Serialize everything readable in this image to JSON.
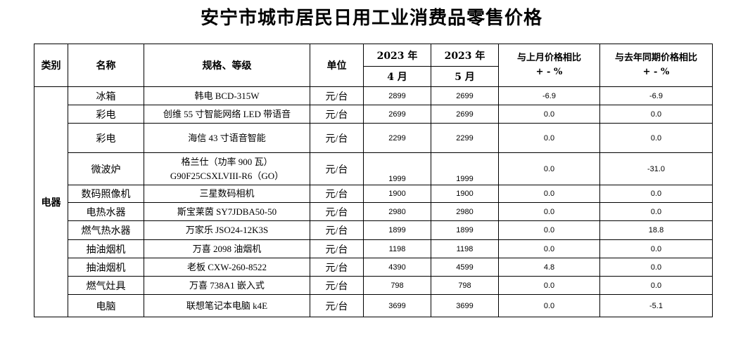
{
  "title": "安宁市城市居民日用工业消费品零售价格",
  "headers": {
    "category": "类别",
    "name": "名称",
    "spec": "规格、等级",
    "unit": "单位",
    "year_a": "2023 年",
    "month_a": "4 月",
    "year_b": "2023 年",
    "month_b": "5 月",
    "mom_line1": "与上月价格相比",
    "mom_line2": "+ - %",
    "yoy_line1": "与去年同期价格相比",
    "yoy_line2": "+ - %"
  },
  "category_label": "电器",
  "rows": [
    {
      "name": "冰箱",
      "spec": "韩电 BCD-315W",
      "spec2": "",
      "unit": "元/台",
      "apr": "2899",
      "may": "2699",
      "mom": "-6.9",
      "yoy": "-6.9"
    },
    {
      "name": "彩电",
      "spec": "创维 55 寸智能网络 LED 带语音",
      "spec2": "",
      "unit": "元/台",
      "apr": "2699",
      "may": "2699",
      "mom": "0.0",
      "yoy": "0.0"
    },
    {
      "name": "彩电",
      "spec": "海信 43 寸语音智能",
      "spec2": "",
      "unit": "元/台",
      "apr": "2299",
      "may": "2299",
      "mom": "0.0",
      "yoy": "0.0"
    },
    {
      "name": "微波炉",
      "spec": "格兰仕（功率 900 瓦）",
      "spec2": "G90F25CSXLVIII-R6（GO）",
      "unit": "元/台",
      "apr": "1999",
      "may": "1999",
      "mom": "0.0",
      "yoy": "-31.0"
    },
    {
      "name": "数码照像机",
      "spec": "三星数码相机",
      "spec2": "",
      "unit": "元/台",
      "apr": "1900",
      "may": "1900",
      "mom": "0.0",
      "yoy": "0.0"
    },
    {
      "name": "电热水器",
      "spec": "斯宝莱茵 SY7JDBA50-50",
      "spec2": "",
      "unit": "元/台",
      "apr": "2980",
      "may": "2980",
      "mom": "0.0",
      "yoy": "0.0"
    },
    {
      "name": "燃气热水器",
      "spec": "万家乐 JSO24-12K3S",
      "spec2": "",
      "unit": "元/台",
      "apr": "1899",
      "may": "1899",
      "mom": "0.0",
      "yoy": "18.8"
    },
    {
      "name": "抽油烟机",
      "spec": "万喜 2098 油烟机",
      "spec2": "",
      "unit": "元/台",
      "apr": "1198",
      "may": "1198",
      "mom": "0.0",
      "yoy": "0.0"
    },
    {
      "name": "抽油烟机",
      "spec": "老板 CXW-260-8522",
      "spec2": "",
      "unit": "元/台",
      "apr": "4390",
      "may": "4599",
      "mom": "4.8",
      "yoy": "0.0"
    },
    {
      "name": "燃气灶具",
      "spec": "万喜 738A1 嵌入式",
      "spec2": "",
      "unit": "元/台",
      "apr": "798",
      "may": "798",
      "mom": "0.0",
      "yoy": "0.0"
    },
    {
      "name": "电脑",
      "spec": "联想笔记本电脑 k4E",
      "spec2": "",
      "unit": "元/台",
      "apr": "3699",
      "may": "3699",
      "mom": "0.0",
      "yoy": "-5.1"
    }
  ]
}
